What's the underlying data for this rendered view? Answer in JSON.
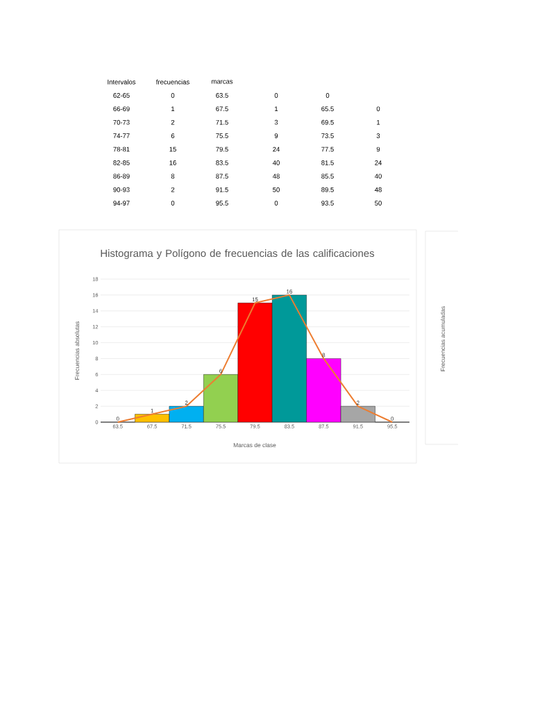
{
  "chart_data": [
    {
      "type": "bar",
      "title": "Histograma y Polígono de frecuencias de las calificaciones",
      "xlabel": "Marcas de clase",
      "ylabel": "Frecuencias absolutas",
      "categories": [
        "63.5",
        "67.5",
        "71.5",
        "75.5",
        "79.5",
        "83.5",
        "87.5",
        "91.5",
        "95.5"
      ],
      "series": [
        {
          "type": "bar",
          "values": [
            0,
            1,
            2,
            6,
            15,
            16,
            8,
            2,
            0
          ],
          "value_labels": [
            "0",
            "1",
            "2",
            "6",
            "15",
            "16",
            "8",
            "2",
            "0"
          ],
          "colors": [
            "#ffc000",
            "#ffc000",
            "#00b0f0",
            "#92d050",
            "#ff0000",
            "#009999",
            "#ff00ff",
            "#a6a6a6",
            "#a6a6a6"
          ]
        },
        {
          "type": "line",
          "color": "#ed7d31",
          "values": [
            0,
            1,
            2,
            6,
            15,
            16,
            8,
            2,
            0
          ]
        }
      ],
      "ylim": [
        0,
        18
      ],
      "yticks": [
        0,
        2,
        4,
        6,
        8,
        10,
        12,
        14,
        16,
        18
      ],
      "grid": "y",
      "marker": "none",
      "annotations": [
        "Intervalos",
        "frecuencias",
        "marcas",
        "62-65",
        "0",
        "63.5",
        "0",
        "0",
        "66-69",
        "1",
        "67.5",
        "1",
        "65.5",
        "0",
        "70-73",
        "2",
        "71.5",
        "3",
        "69.5",
        "1",
        "74-77",
        "6",
        "75.5",
        "9",
        "73.5",
        "3",
        "78-81",
        "15",
        "79.5",
        "24",
        "77.5",
        "9",
        "82-85",
        "16",
        "83.5",
        "40",
        "81.5",
        "24",
        "86-89",
        "8",
        "87.5",
        "48",
        "85.5",
        "40",
        "90-93",
        "2",
        "91.5",
        "50",
        "89.5",
        "48",
        "94-97",
        "0",
        "95.5",
        "0",
        "93.5",
        "50"
      ]
    },
    {
      "type": "other",
      "ylabel": "Frecuencias acumuladas"
    }
  ]
}
